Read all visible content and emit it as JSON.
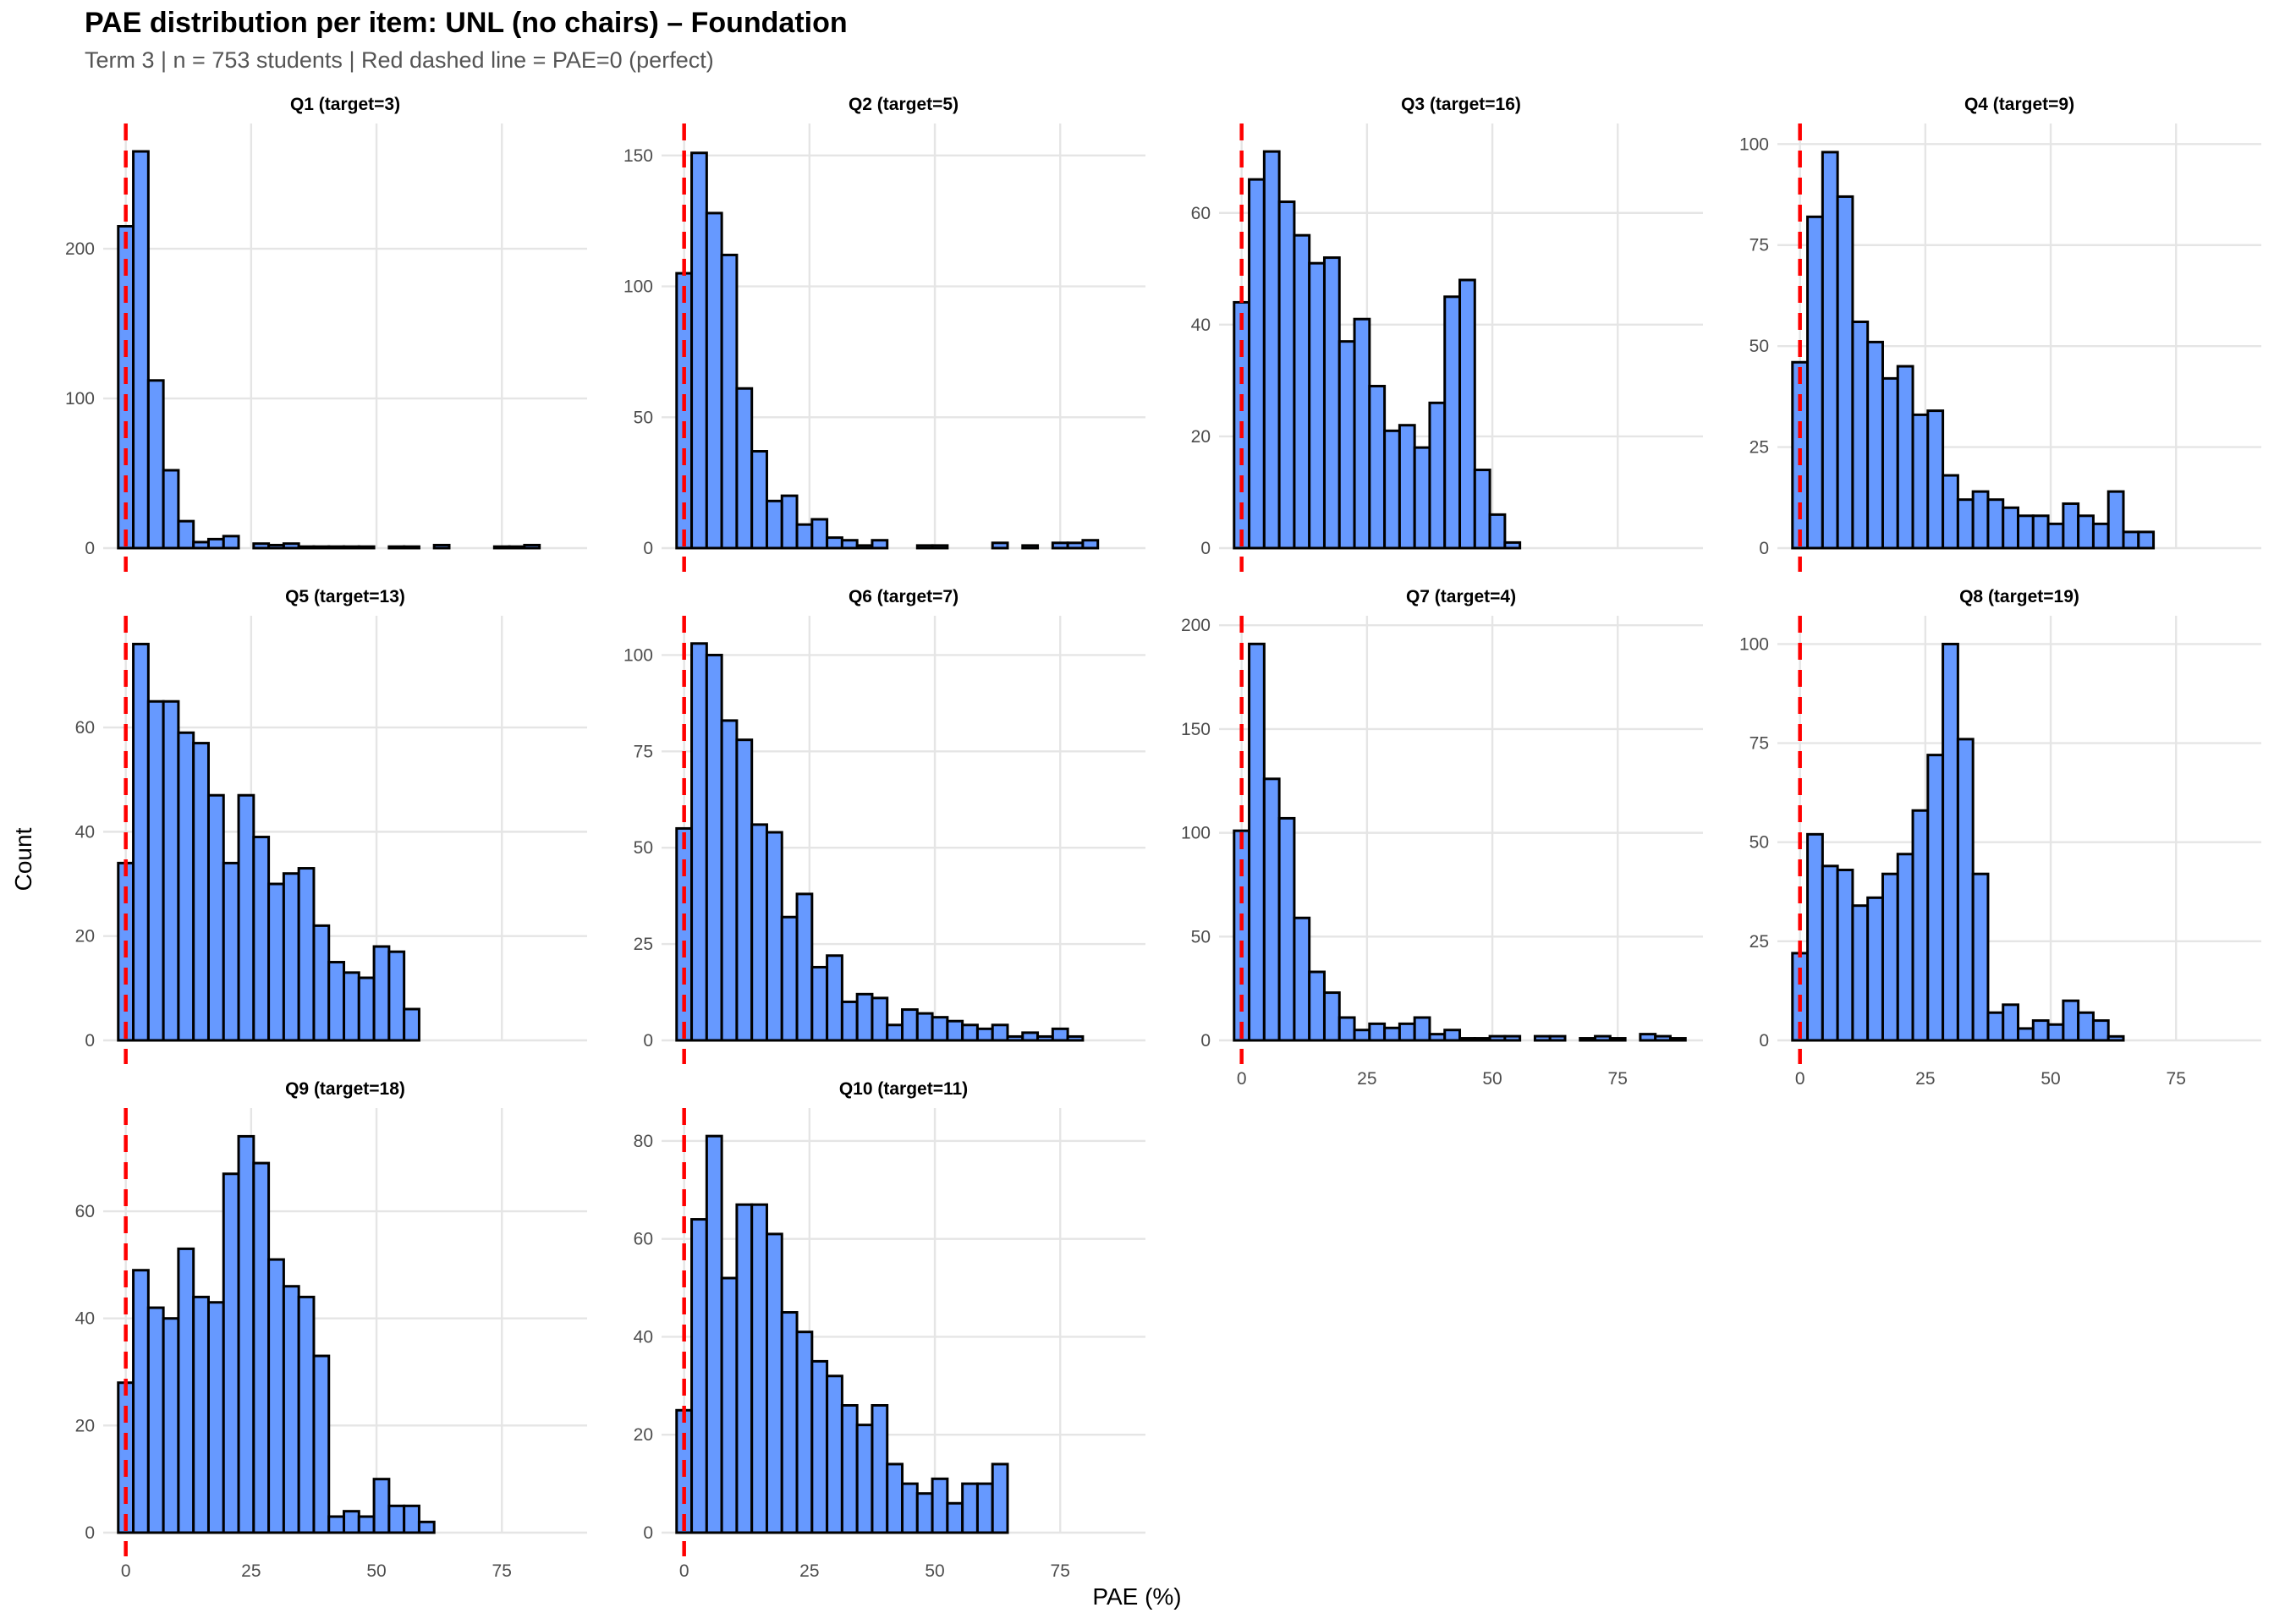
{
  "chart_data": {
    "type": "bar",
    "subtype": "histogram-facets",
    "title": "PAE distribution per item: UNL (no chairs) – Foundation",
    "subtitle": "Term 3 | n = 753 students | Red dashed line = PAE=0 (perfect)",
    "xlabel": "PAE (%)",
    "ylabel": "Count",
    "bin_width": 3,
    "bin_start": -1.5,
    "xlim": [
      -1.5,
      88.5
    ],
    "x_ticks": [
      0,
      25,
      50,
      75
    ],
    "reference_line": {
      "x": 0,
      "color": "#ff0000",
      "style": "dashed",
      "label": "PAE=0 (perfect)"
    },
    "bar_fill": "#6699ff",
    "bar_outline": "#000000",
    "grid": true,
    "facet_layout": {
      "rows": 3,
      "cols": 4,
      "free_y": true
    },
    "panels": [
      {
        "label": "Q1 (target=3)",
        "item": "Q1",
        "target": 3,
        "y_ticks": [
          0,
          100,
          200
        ],
        "ylim": [
          0,
          278
        ],
        "counts": [
          215,
          265,
          112,
          52,
          18,
          4,
          6,
          8,
          0,
          3,
          2,
          3,
          1,
          1,
          1,
          1,
          1,
          0,
          1,
          1,
          0,
          2,
          0,
          0,
          0,
          1,
          1,
          2,
          0,
          0
        ]
      },
      {
        "label": "Q2 (target=5)",
        "item": "Q2",
        "target": 5,
        "y_ticks": [
          0,
          50,
          100,
          150
        ],
        "ylim": [
          0,
          159
        ],
        "counts": [
          105,
          151,
          128,
          112,
          61,
          37,
          18,
          20,
          9,
          11,
          4,
          3,
          1,
          3,
          0,
          0,
          1,
          1,
          0,
          0,
          0,
          2,
          0,
          1,
          0,
          2,
          2,
          3,
          0,
          0
        ]
      },
      {
        "label": "Q3 (target=16)",
        "item": "Q3",
        "target": 16,
        "y_ticks": [
          0,
          20,
          40,
          60
        ],
        "ylim": [
          0,
          74.5
        ],
        "counts": [
          44,
          66,
          71,
          62,
          56,
          51,
          52,
          37,
          41,
          29,
          21,
          22,
          18,
          26,
          45,
          48,
          14,
          6,
          1,
          0,
          0,
          0,
          0,
          0,
          0,
          0,
          0,
          0,
          0,
          0
        ]
      },
      {
        "label": "Q4 (target=9)",
        "item": "Q4",
        "target": 9,
        "y_ticks": [
          0,
          25,
          50,
          75,
          100
        ],
        "ylim": [
          0,
          103
        ],
        "counts": [
          46,
          82,
          98,
          87,
          56,
          51,
          42,
          45,
          33,
          34,
          18,
          12,
          14,
          12,
          10,
          8,
          8,
          6,
          11,
          8,
          6,
          14,
          4,
          4,
          0,
          0,
          0,
          0,
          0,
          0
        ]
      },
      {
        "label": "Q5 (target=13)",
        "item": "Q5",
        "target": 13,
        "y_ticks": [
          0,
          20,
          40,
          60
        ],
        "ylim": [
          0,
          79.8
        ],
        "counts": [
          34,
          76,
          65,
          65,
          59,
          57,
          47,
          34,
          47,
          39,
          30,
          32,
          33,
          22,
          15,
          13,
          12,
          18,
          17,
          6,
          0,
          0,
          0,
          0,
          0,
          0,
          0,
          0,
          0,
          0
        ]
      },
      {
        "label": "Q6 (target=7)",
        "item": "Q6",
        "target": 7,
        "y_ticks": [
          0,
          25,
          50,
          75,
          100
        ],
        "ylim": [
          0,
          108
        ],
        "counts": [
          55,
          103,
          100,
          83,
          78,
          56,
          54,
          32,
          38,
          19,
          22,
          10,
          12,
          11,
          4,
          8,
          7,
          6,
          5,
          4,
          3,
          4,
          1,
          2,
          1,
          3,
          1,
          0,
          0,
          0
        ]
      },
      {
        "label": "Q7 (target=4)",
        "item": "Q7",
        "target": 4,
        "y_ticks": [
          0,
          50,
          100,
          150,
          200
        ],
        "ylim": [
          0,
          200.5
        ],
        "counts": [
          101,
          191,
          126,
          107,
          59,
          33,
          23,
          11,
          5,
          8,
          6,
          8,
          11,
          3,
          5,
          1,
          1,
          2,
          2,
          0,
          2,
          2,
          0,
          1,
          2,
          1,
          0,
          3,
          2,
          1
        ]
      },
      {
        "label": "Q8 (target=19)",
        "item": "Q8",
        "target": 19,
        "y_ticks": [
          0,
          25,
          50,
          75,
          100
        ],
        "ylim": [
          0,
          105
        ],
        "counts": [
          22,
          52,
          44,
          43,
          34,
          36,
          42,
          47,
          58,
          72,
          100,
          76,
          42,
          7,
          9,
          3,
          5,
          4,
          10,
          7,
          5,
          1,
          0,
          0,
          0,
          0,
          0,
          0,
          0,
          0
        ]
      },
      {
        "label": "Q9 (target=18)",
        "item": "Q9",
        "target": 18,
        "y_ticks": [
          0,
          20,
          40,
          60
        ],
        "ylim": [
          0,
          77.7
        ],
        "counts": [
          28,
          49,
          42,
          40,
          53,
          44,
          43,
          67,
          74,
          69,
          51,
          46,
          44,
          33,
          3,
          4,
          3,
          10,
          5,
          5,
          2,
          0,
          0,
          0,
          0,
          0,
          0,
          0,
          0,
          0
        ]
      },
      {
        "label": "Q10 (target=11)",
        "item": "Q10",
        "target": 11,
        "y_ticks": [
          0,
          20,
          40,
          60,
          80
        ],
        "ylim": [
          0,
          85
        ],
        "counts": [
          25,
          64,
          81,
          52,
          67,
          67,
          61,
          45,
          41,
          35,
          32,
          26,
          22,
          26,
          14,
          10,
          8,
          11,
          6,
          10,
          10,
          14,
          0,
          0,
          0,
          0,
          0,
          0,
          0,
          0
        ]
      }
    ],
    "x_tick_labels_shown_on_panels": [
      "Q7",
      "Q8",
      "Q9",
      "Q10"
    ]
  }
}
